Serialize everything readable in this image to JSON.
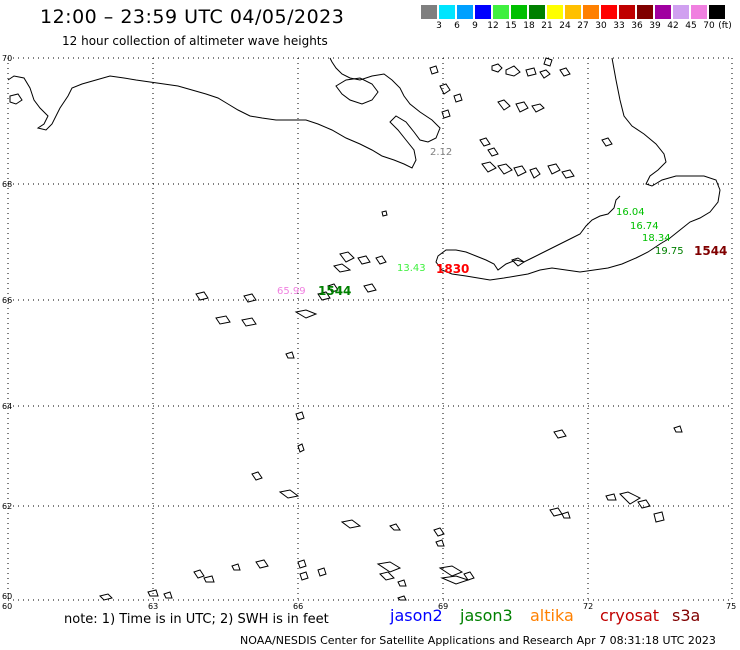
{
  "header": {
    "title": "12:00 – 23:59 UTC 04/05/2023",
    "subtitle": "12 hour collection of altimeter wave heights"
  },
  "scale": {
    "unit": "(ft)",
    "swatches": [
      {
        "label": "3",
        "color": "#7f7f7f"
      },
      {
        "label": "6",
        "color": "#00e5ff"
      },
      {
        "label": "9",
        "color": "#00a0ff"
      },
      {
        "label": "12",
        "color": "#0000ff"
      },
      {
        "label": "15",
        "color": "#40f040"
      },
      {
        "label": "18",
        "color": "#00c000"
      },
      {
        "label": "21",
        "color": "#008000"
      },
      {
        "label": "24",
        "color": "#ffff00"
      },
      {
        "label": "27",
        "color": "#ffc000"
      },
      {
        "label": "30",
        "color": "#ff8000"
      },
      {
        "label": "33",
        "color": "#ff0000"
      },
      {
        "label": "36",
        "color": "#c00000"
      },
      {
        "label": "39",
        "color": "#800000"
      },
      {
        "label": "42",
        "color": "#a000a0"
      },
      {
        "label": "45",
        "color": "#d0a0f0"
      },
      {
        "label": "70",
        "color": "#f080e0"
      },
      {
        "label": "",
        "color": "#000000"
      }
    ]
  },
  "map": {
    "lat_labels": [
      "70",
      "68",
      "66",
      "64",
      "62",
      "60"
    ],
    "lon_labels": [
      "60",
      "63",
      "66",
      "69",
      "72",
      "75"
    ]
  },
  "observations": [
    {
      "text": "2.12",
      "color": "#7f7f7f"
    },
    {
      "text": "16.04",
      "color": "#00c000"
    },
    {
      "text": "16.74",
      "color": "#00c000"
    },
    {
      "text": "18.34",
      "color": "#00c000"
    },
    {
      "text": "19.75",
      "color": "#008000"
    },
    {
      "text": "1544",
      "color": "#800000"
    },
    {
      "text": "13.43",
      "color": "#40f040"
    },
    {
      "text": "1830",
      "color": "#ff0000"
    },
    {
      "text": "65.99",
      "color": "#f080e0"
    },
    {
      "text": "1544",
      "color": "#008000"
    }
  ],
  "footer": {
    "note": "note: 1) Time is in UTC; 2) SWH is in feet",
    "satellites": [
      {
        "name": "jason2",
        "color": "#0000ff"
      },
      {
        "name": "jason3",
        "color": "#008000"
      },
      {
        "name": "altika",
        "color": "#ff8000"
      },
      {
        "name": "cryosat",
        "color": "#c00000"
      },
      {
        "name": "s3a",
        "color": "#800000"
      }
    ],
    "credit": "NOAA/NESDIS Center for Satellite Applications and Research   Apr  7 08:31:18 UTC 2023"
  }
}
